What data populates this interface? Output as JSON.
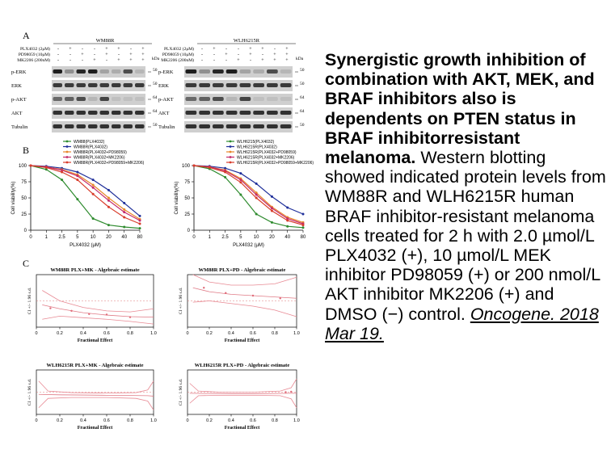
{
  "caption": {
    "title": "Synergistic growth inhibition of combination with AKT, MEK, and BRAF inhibitors also is dependents on PTEN status in BRAF inhibitorresistant melanoma.",
    "body": "Western blotting showed indicated protein levels from WM88R and WLH6215R human BRAF inhibitor-resistant melanoma cells treated for 2 h with 2.0 µmol/L PLX4032 (+), 10 µmol/L MEK inhibitor PD98059 (+) or 200 nmol/L AKT inhibitor MK2206 (+) and DMSO (−) control.",
    "citation": "Oncogene. 2018 Mar 19."
  },
  "panel_a": {
    "letter": "A",
    "kda_label": "kDa",
    "blots": [
      {
        "cell_line": "WM88R",
        "treatments": [
          {
            "label": "PLX4032 (2μM)",
            "signs": [
              "-",
              "+",
              "-",
              "-",
              "+",
              "+",
              "-",
              "+"
            ]
          },
          {
            "label": "PD98059 (10μM)",
            "signs": [
              "-",
              "-",
              "+",
              "-",
              "+",
              "-",
              "+",
              "+"
            ]
          },
          {
            "label": "MK2206 (200nM)",
            "signs": [
              "-",
              "-",
              "-",
              "+",
              "-",
              "+",
              "+",
              "+"
            ]
          }
        ],
        "bands": [
          {
            "label": "p-ERK",
            "kda": "50"
          },
          {
            "label": "ERK",
            "kda": "50"
          },
          {
            "label": "p-AKT",
            "kda": "64"
          },
          {
            "label": "AKT",
            "kda": "64"
          },
          {
            "label": "Tubulin",
            "kda": "50"
          }
        ]
      },
      {
        "cell_line": "WLH6215R",
        "treatments": [
          {
            "label": "PLX4032 (2μM)",
            "signs": [
              "-",
              "+",
              "-",
              "-",
              "+",
              "+",
              "-",
              "+"
            ]
          },
          {
            "label": "PD98059 (10μM)",
            "signs": [
              "-",
              "-",
              "+",
              "-",
              "+",
              "-",
              "+",
              "+"
            ]
          },
          {
            "label": "MK2206 (200nM)",
            "signs": [
              "-",
              "-",
              "-",
              "+",
              "-",
              "+",
              "+",
              "+"
            ]
          }
        ],
        "bands": [
          {
            "label": "p-ERK",
            "kda": "50"
          },
          {
            "label": "ERK",
            "kda": "50"
          },
          {
            "label": "p-AKT",
            "kda": "64"
          },
          {
            "label": "AKT",
            "kda": "64"
          },
          {
            "label": "Tubulin",
            "kda": "50"
          }
        ]
      }
    ]
  },
  "panel_b": {
    "letter": "B",
    "colors": [
      "#2e8b2e",
      "#1f2f9a",
      "#e8862a",
      "#c42a6a",
      "#d83b2a"
    ]
  },
  "panel_c": {
    "letter": "C"
  },
  "chart_data": [
    {
      "type": "line",
      "title": "",
      "xlabel": "PLX4032 (μM)",
      "ylabel": "Cell viability(%)",
      "categories": [
        "0",
        "1",
        "2.5",
        "5",
        "10",
        "20",
        "40",
        "80"
      ],
      "ylim": [
        0,
        100
      ],
      "yticks": [
        "0",
        "25",
        "50",
        "75",
        "100"
      ],
      "series": [
        {
          "name": "WM88(PLX4032)",
          "values": [
            100,
            94,
            78,
            48,
            18,
            8,
            5,
            3
          ]
        },
        {
          "name": "WM88R(PLX4032)",
          "values": [
            100,
            99,
            96,
            90,
            78,
            62,
            42,
            22
          ]
        },
        {
          "name": "WM88R(PLX4032+PD98059)",
          "values": [
            100,
            98,
            94,
            86,
            70,
            50,
            32,
            17
          ]
        },
        {
          "name": "WM88R(PLX4032+MK2206)",
          "values": [
            100,
            98,
            93,
            84,
            66,
            46,
            28,
            15
          ]
        },
        {
          "name": "WM88R(PLX4032+PD98059+MK2206)",
          "values": [
            100,
            97,
            90,
            78,
            56,
            36,
            20,
            10
          ]
        }
      ]
    },
    {
      "type": "line",
      "title": "",
      "xlabel": "PLX4032 (μM)",
      "ylabel": "Cell viability(%)",
      "categories": [
        "0",
        "1",
        "2.5",
        "5",
        "10",
        "20",
        "40",
        "80"
      ],
      "ylim": [
        0,
        100
      ],
      "yticks": [
        "0",
        "25",
        "50",
        "75",
        "100"
      ],
      "series": [
        {
          "name": "WLH6215(PLX4032)",
          "values": [
            100,
            95,
            82,
            55,
            25,
            12,
            6,
            4
          ]
        },
        {
          "name": "WLH6215R(PLX4032)",
          "values": [
            100,
            99,
            96,
            88,
            72,
            52,
            35,
            25
          ]
        },
        {
          "name": "WLH6215R(PLX4032+PD98059)",
          "values": [
            100,
            98,
            93,
            80,
            58,
            36,
            20,
            12
          ]
        },
        {
          "name": "WLH6215R(PLX4032+MK2206)",
          "values": [
            100,
            98,
            92,
            78,
            55,
            34,
            18,
            10
          ]
        },
        {
          "name": "WLH6215R(PLX4032+PD98059+MK2206)",
          "values": [
            100,
            97,
            90,
            74,
            50,
            30,
            15,
            8
          ]
        }
      ]
    },
    {
      "type": "line",
      "title": "WM88R PLX+MK - Algebraic estimate",
      "xlabel": "Fractional Effect",
      "ylabel": "CI +/- 1.96 s.d.",
      "xlim": [
        0,
        1
      ],
      "ylim": [
        0,
        2
      ],
      "xticks": [
        "0",
        "0.2",
        "0.4",
        "0.6",
        "0.8",
        "1.0"
      ],
      "points": [
        [
          0.12,
          0.72
        ],
        [
          0.3,
          0.62
        ],
        [
          0.45,
          0.5
        ],
        [
          0.6,
          0.48
        ],
        [
          0.8,
          0.38
        ]
      ],
      "ci_center": [
        [
          0.05,
          0.85
        ],
        [
          0.2,
          0.7
        ],
        [
          0.4,
          0.55
        ],
        [
          0.6,
          0.46
        ],
        [
          0.8,
          0.4
        ],
        [
          1.0,
          0.38
        ]
      ],
      "ci_upper": [
        [
          0.05,
          1.4
        ],
        [
          0.2,
          1.0
        ],
        [
          0.4,
          0.75
        ],
        [
          0.6,
          0.62
        ],
        [
          0.8,
          0.58
        ],
        [
          1.0,
          0.7
        ]
      ],
      "ci_lower": [
        [
          0.05,
          0.3
        ],
        [
          0.2,
          0.42
        ],
        [
          0.4,
          0.36
        ],
        [
          0.6,
          0.3
        ],
        [
          0.8,
          0.22
        ],
        [
          1.0,
          0.12
        ]
      ]
    },
    {
      "type": "line",
      "title": "WM88R PLX+PD - Algebraic estimate",
      "xlabel": "Fractional Effect",
      "ylabel": "CI +/- 1.96 s.d.",
      "xlim": [
        0,
        1
      ],
      "ylim": [
        0,
        2
      ],
      "xticks": [
        "0",
        "0.2",
        "0.4",
        "0.6",
        "0.8",
        "1.0"
      ],
      "points": [
        [
          0.15,
          1.5
        ],
        [
          0.35,
          1.3
        ],
        [
          0.6,
          1.2
        ],
        [
          0.85,
          1.1
        ]
      ],
      "ci_center": [
        [
          0.05,
          1.5
        ],
        [
          0.2,
          1.35
        ],
        [
          0.4,
          1.25
        ],
        [
          0.6,
          1.2
        ],
        [
          0.8,
          1.15
        ],
        [
          1.0,
          1.1
        ]
      ],
      "ci_upper": [
        [
          0.05,
          2.0
        ],
        [
          0.2,
          1.72
        ],
        [
          0.4,
          1.6
        ],
        [
          0.6,
          1.6
        ],
        [
          0.8,
          1.65
        ],
        [
          1.0,
          1.9
        ]
      ],
      "ci_lower": [
        [
          0.05,
          0.95
        ],
        [
          0.2,
          1.0
        ],
        [
          0.4,
          0.9
        ],
        [
          0.6,
          0.8
        ],
        [
          0.8,
          0.65
        ],
        [
          1.0,
          0.4
        ]
      ]
    },
    {
      "type": "line",
      "title": "WLH6215R PLX+MK - Algebraic estimate",
      "xlabel": "Fractional Effect",
      "ylabel": "CI +/- 1.96 s.d.",
      "xlim": [
        0,
        1
      ],
      "ylim": [
        0,
        2
      ],
      "xticks": [
        "0",
        "0.2",
        "0.4",
        "0.6",
        "0.8",
        "1.0"
      ],
      "points": [],
      "ci_center": [
        [
          0.02,
          0.9
        ],
        [
          0.2,
          0.88
        ],
        [
          0.4,
          0.87
        ],
        [
          0.6,
          0.86
        ],
        [
          0.8,
          0.85
        ],
        [
          0.95,
          0.84
        ],
        [
          1.0,
          0.82
        ]
      ],
      "ci_upper": [
        [
          0.02,
          1.5
        ],
        [
          0.1,
          1.05
        ],
        [
          0.3,
          0.98
        ],
        [
          0.6,
          0.96
        ],
        [
          0.85,
          0.98
        ],
        [
          0.95,
          1.1
        ],
        [
          1.0,
          1.5
        ]
      ],
      "ci_lower": [
        [
          0.02,
          0.3
        ],
        [
          0.1,
          0.72
        ],
        [
          0.3,
          0.76
        ],
        [
          0.6,
          0.76
        ],
        [
          0.85,
          0.72
        ],
        [
          0.95,
          0.6
        ],
        [
          1.0,
          0.2
        ]
      ]
    },
    {
      "type": "line",
      "title": "WLH6215R PLX+PD - Algebraic estimate",
      "xlabel": "Fractional Effect",
      "ylabel": "CI +/- 1.96 s.d.",
      "xlim": [
        0,
        1
      ],
      "ylim": [
        0,
        2
      ],
      "xticks": [
        "0",
        "0.2",
        "0.4",
        "0.6",
        "0.8",
        "1.0"
      ],
      "points": [
        [
          0.9,
          1.0
        ],
        [
          0.95,
          1.02
        ]
      ],
      "ci_center": [
        [
          0.02,
          0.95
        ],
        [
          0.2,
          0.94
        ],
        [
          0.4,
          0.93
        ],
        [
          0.6,
          0.93
        ],
        [
          0.8,
          0.94
        ],
        [
          0.95,
          0.95
        ],
        [
          1.0,
          0.95
        ]
      ],
      "ci_upper": [
        [
          0.02,
          1.4
        ],
        [
          0.1,
          1.05
        ],
        [
          0.3,
          1.0
        ],
        [
          0.6,
          1.0
        ],
        [
          0.85,
          1.05
        ],
        [
          0.95,
          1.2
        ],
        [
          1.0,
          1.6
        ]
      ],
      "ci_lower": [
        [
          0.02,
          0.5
        ],
        [
          0.1,
          0.84
        ],
        [
          0.3,
          0.86
        ],
        [
          0.6,
          0.86
        ],
        [
          0.85,
          0.84
        ],
        [
          0.95,
          0.7
        ],
        [
          1.0,
          0.3
        ]
      ]
    }
  ]
}
